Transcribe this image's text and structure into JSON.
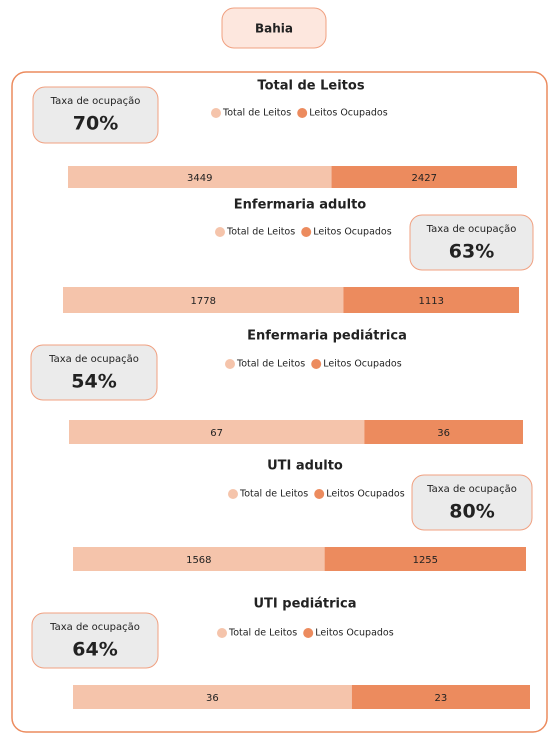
{
  "header": {
    "title": "Bahia"
  },
  "chart_data": [
    {
      "type": "bar",
      "title": "Total de Leitos",
      "categories": [
        null
      ],
      "annotations": [
        "Taxa de ocupação",
        "70%"
      ],
      "series": [
        {
          "name": "Total de Leitos",
          "color": "#f5c4ab",
          "values": [
            3449
          ]
        },
        {
          "name": "Leitos Ocupados",
          "color": "#ec8b5e",
          "values": [
            2427
          ]
        }
      ]
    },
    {
      "type": "bar",
      "title": "Enfermaria adulto",
      "categories": [
        null
      ],
      "annotations": [
        "Taxa de ocupação",
        "63%"
      ],
      "series": [
        {
          "name": "Total de Leitos",
          "color": "#f5c4ab",
          "values": [
            1778
          ]
        },
        {
          "name": "Leitos Ocupados",
          "color": "#ec8b5e",
          "values": [
            1113
          ]
        }
      ]
    },
    {
      "type": "bar",
      "title": "Enfermaria pediátrica",
      "categories": [
        null
      ],
      "annotations": [
        "Taxa de ocupação",
        "54%"
      ],
      "series": [
        {
          "name": "Total de Leitos",
          "color": "#f5c4ab",
          "values": [
            67
          ]
        },
        {
          "name": "Leitos Ocupados",
          "color": "#ec8b5e",
          "values": [
            36
          ]
        }
      ]
    },
    {
      "type": "bar",
      "title": "UTI adulto",
      "categories": [
        null
      ],
      "annotations": [
        "Taxa de ocupação",
        "80%"
      ],
      "series": [
        {
          "name": "Total de Leitos",
          "color": "#f5c4ab",
          "values": [
            1568
          ]
        },
        {
          "name": "Leitos Ocupados",
          "color": "#ec8b5e",
          "values": [
            1255
          ]
        }
      ]
    },
    {
      "type": "bar",
      "title": "UTI pediátrica",
      "categories": [
        null
      ],
      "annotations": [
        "Taxa de ocupação",
        "64%"
      ],
      "series": [
        {
          "name": "Total de Leitos",
          "color": "#f5c4ab",
          "values": [
            36
          ]
        },
        {
          "name": "Leitos Ocupados",
          "color": "#ec8b5e",
          "values": [
            23
          ]
        }
      ]
    }
  ]
}
